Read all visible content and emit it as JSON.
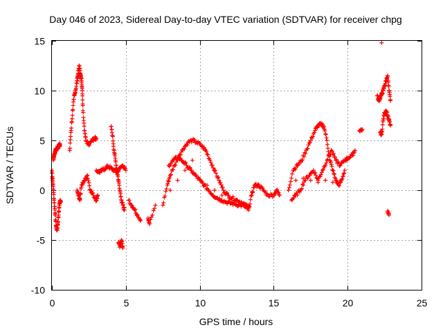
{
  "chart_data": {
    "type": "scatter",
    "title": "Day 046 of 2023, Sidereal Day-to-day VTEC variation (SDTVAR) for receiver chpg",
    "xlabel": "GPS time / hours",
    "ylabel": "SDTVAR / TECUs",
    "xlim": [
      0,
      25
    ],
    "ylim": [
      -10,
      15
    ],
    "xticks": [
      0,
      5,
      10,
      15,
      20,
      25
    ],
    "yticks": [
      -10,
      -5,
      0,
      5,
      10,
      15
    ],
    "xtick_labels": [
      "0",
      "5",
      "10",
      "15",
      "20",
      "25"
    ],
    "ytick_labels": [
      "-10",
      "-5",
      "0",
      "5",
      "10",
      "15"
    ],
    "grid": true,
    "marker": "+",
    "color": "#ff0000",
    "series": [
      {
        "name": "chpg",
        "x": [
          0.0,
          0.05,
          0.1,
          0.15,
          0.2,
          0.25,
          0.3,
          0.35,
          0.4,
          0.45,
          0.5,
          0.55,
          0.6,
          0.1,
          0.15,
          0.2,
          0.25,
          0.3,
          0.35,
          0.4,
          0.45,
          0.5,
          0.55,
          1.2,
          1.3,
          1.4,
          1.5,
          1.6,
          1.7,
          1.75,
          1.8,
          1.85,
          1.9,
          1.95,
          2.0,
          2.05,
          2.1,
          2.2,
          2.3,
          2.5,
          2.7,
          2.9,
          3.0,
          1.7,
          1.8,
          1.9,
          2.0,
          2.2,
          2.4,
          2.6,
          2.8,
          3.0,
          3.1,
          3.0,
          3.2,
          3.4,
          3.6,
          3.8,
          4.0,
          4.2,
          4.4,
          4.6,
          4.8,
          5.0,
          4.0,
          4.1,
          4.2,
          4.3,
          4.4,
          4.5,
          4.6,
          4.7,
          4.8,
          4.9,
          4.5,
          4.6,
          4.7,
          4.8,
          5.2,
          5.4,
          5.6,
          5.8,
          6.0,
          6.5,
          6.6,
          7.0,
          7.5,
          7.8,
          8.0,
          8.3,
          8.6,
          8.9,
          9.2,
          9.5,
          9.8,
          10.1,
          10.4,
          10.7,
          11.0,
          11.3,
          11.6,
          11.9,
          12.2,
          12.5,
          12.8,
          13.1,
          13.3,
          7.9,
          8.2,
          8.5,
          8.8,
          9.1,
          9.4,
          9.7,
          10.0,
          10.3,
          10.6,
          10.9,
          11.2,
          11.5,
          11.8,
          12.1,
          12.4,
          12.7,
          13.0,
          13.3,
          8.0,
          8.5,
          9.0,
          9.5,
          10.0,
          10.5,
          11.0,
          11.5,
          12.0,
          12.5,
          13.0,
          13.3,
          13.5,
          13.7,
          14.0,
          14.3,
          14.6,
          15.0,
          15.2,
          15.4,
          16.0,
          16.3,
          16.6,
          16.9,
          17.2,
          17.5,
          17.8,
          18.0,
          18.2,
          18.4,
          18.6,
          18.8,
          19.0,
          19.2,
          19.4,
          19.6,
          19.8,
          16.2,
          16.5,
          16.8,
          17.1,
          17.4,
          17.7,
          18.0,
          18.3,
          18.6,
          18.9,
          19.2,
          19.5,
          19.8,
          20.0,
          20.3,
          20.5,
          16.5,
          17.0,
          17.5,
          18.0,
          18.5,
          19.0,
          20.8,
          21.0,
          22.0,
          22.1,
          22.2,
          22.3,
          22.4,
          22.5,
          22.6,
          22.7,
          22.8,
          22.9,
          22.2,
          22.3,
          22.4,
          22.5,
          22.6,
          22.7,
          22.8,
          22.9,
          22.3,
          22.7,
          22.8
        ],
        "y": [
          2.0,
          1.0,
          0.0,
          -1.0,
          -2.0,
          -3.0,
          -3.8,
          -4.0,
          -3.5,
          -2.5,
          -1.5,
          -1.0,
          -1.2,
          3.0,
          3.5,
          3.8,
          4.0,
          4.1,
          4.2,
          4.3,
          4.4,
          4.5,
          4.6,
          4.0,
          6.0,
          8.0,
          9.5,
          10.0,
          11.0,
          11.5,
          12.0,
          12.5,
          12.0,
          11.5,
          11.0,
          10.0,
          8.0,
          6.0,
          5.0,
          4.5,
          5.0,
          5.2,
          5.2,
          0.0,
          -0.5,
          -1.0,
          0.5,
          1.0,
          1.5,
          0.0,
          -0.5,
          -1.0,
          -0.5,
          2.0,
          1.8,
          2.0,
          2.2,
          2.4,
          2.2,
          2.0,
          1.8,
          2.2,
          2.5,
          2.0,
          6.4,
          5.5,
          4.0,
          3.0,
          2.0,
          1.0,
          0.0,
          -1.0,
          -1.5,
          -2.0,
          -5.3,
          -5.6,
          -5.0,
          -5.8,
          -1.0,
          -1.5,
          -2.0,
          -2.5,
          -3.0,
          -2.8,
          -3.4,
          -1.5,
          -1.5,
          0.5,
          1.5,
          2.5,
          3.5,
          4.2,
          4.8,
          5.0,
          4.8,
          4.5,
          4.0,
          3.0,
          2.0,
          1.0,
          0.0,
          -0.5,
          -0.8,
          -1.0,
          -1.2,
          -1.5,
          -1.8,
          2.5,
          3.0,
          3.3,
          3.0,
          2.5,
          2.0,
          1.5,
          1.0,
          0.5,
          0.0,
          -0.5,
          -0.8,
          -1.0,
          -1.2,
          -1.3,
          -1.4,
          -1.5,
          -1.6,
          -1.7,
          0.0,
          1.0,
          2.0,
          3.0,
          1.0,
          0.5,
          0.0,
          -0.5,
          -0.8,
          -1.0,
          -1.5,
          -2.0,
          -0.5,
          0.5,
          0.5,
          0.0,
          -0.5,
          -0.5,
          0.0,
          -0.5,
          0.0,
          2.0,
          2.5,
          3.0,
          4.0,
          5.0,
          6.0,
          6.5,
          6.6,
          6.4,
          5.0,
          3.0,
          2.0,
          1.0,
          0.5,
          1.0,
          2.0,
          -1.0,
          -0.5,
          0.0,
          1.0,
          1.5,
          2.0,
          1.0,
          2.0,
          3.0,
          4.0,
          3.0,
          2.5,
          3.0,
          3.2,
          3.5,
          4.0,
          1.0,
          1.2,
          1.0,
          0.8,
          1.0,
          0.8,
          6.0,
          6.1,
          9.5,
          9.0,
          9.3,
          9.6,
          10.0,
          10.5,
          11.0,
          11.5,
          10.0,
          9.0,
          5.8,
          5.6,
          7.0,
          7.8,
          8.0,
          7.5,
          7.0,
          6.5,
          14.8,
          -2.2,
          -2.5
        ]
      }
    ]
  }
}
